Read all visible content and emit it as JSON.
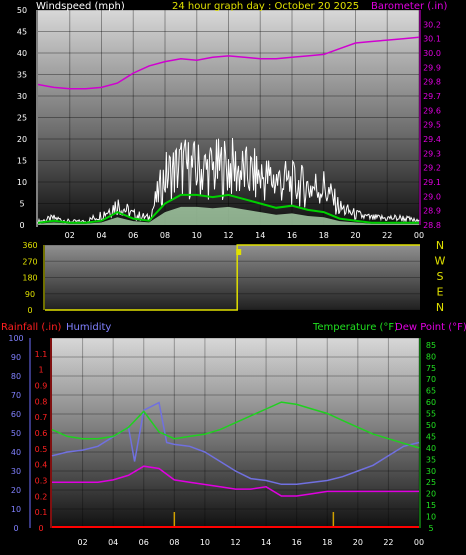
{
  "chart_data": [
    {
      "type": "line",
      "title": "24 hour graph day : October 20 2025",
      "ylabel_left": "Windspeed (mph)",
      "ylabel_right": "Barometer (.in)",
      "x_ticks": [
        "02",
        "04",
        "06",
        "08",
        "10",
        "12",
        "14",
        "16",
        "18",
        "20",
        "22",
        "00"
      ],
      "xlim": [
        0,
        24
      ],
      "ylim_left": [
        0,
        50
      ],
      "ylim_right": [
        28.8,
        30.3
      ],
      "left_ticks": [
        0,
        5,
        10,
        15,
        20,
        25,
        30,
        35,
        40,
        45,
        50
      ],
      "right_ticks": [
        28.8,
        28.9,
        29.0,
        29.1,
        29.2,
        29.3,
        29.4,
        29.5,
        29.6,
        29.7,
        29.8,
        29.9,
        30.0,
        30.1,
        30.2
      ],
      "series": [
        {
          "axis": "right",
          "color": "#d000d0",
          "x": [
            0,
            1,
            2,
            3,
            4,
            5,
            6,
            7,
            8,
            9,
            10,
            11,
            12,
            13,
            14,
            15,
            16,
            17,
            18,
            19,
            20,
            21,
            22,
            23,
            24
          ],
          "y": [
            29.78,
            29.76,
            29.75,
            29.75,
            29.76,
            29.79,
            29.86,
            29.91,
            29.94,
            29.96,
            29.95,
            29.97,
            29.98,
            29.97,
            29.96,
            29.96,
            29.97,
            29.98,
            29.99,
            30.03,
            30.07,
            30.08,
            30.09,
            30.1,
            30.11
          ]
        },
        {
          "axis": "left",
          "color": "#ffffff",
          "x": [
            0,
            1,
            2,
            3,
            4,
            5,
            6,
            7,
            8,
            9,
            10,
            11,
            12,
            13,
            14,
            15,
            16,
            17,
            18,
            19,
            20,
            21,
            22,
            23,
            24
          ],
          "y": [
            1,
            2,
            1,
            1,
            3,
            6,
            3,
            2,
            14,
            17,
            16,
            16,
            17,
            15,
            14,
            13,
            12,
            11,
            11,
            5,
            3,
            2,
            2,
            2,
            1
          ]
        },
        {
          "axis": "left",
          "color": "#00d000",
          "x": [
            0,
            1,
            2,
            3,
            4,
            5,
            6,
            7,
            8,
            9,
            10,
            11,
            12,
            13,
            14,
            15,
            16,
            17,
            18,
            19,
            20,
            21,
            22,
            23,
            24
          ],
          "y": [
            0.5,
            1,
            0.5,
            0.5,
            1,
            3,
            1.5,
            1,
            5,
            7,
            7,
            6.5,
            7,
            6,
            5,
            4,
            4.5,
            3.5,
            3,
            1.5,
            1,
            0.5,
            0.5,
            0.5,
            0.5
          ]
        }
      ]
    },
    {
      "type": "line",
      "title": "",
      "ylabel_right": "",
      "right_labels": [
        "N",
        "W",
        "S",
        "E",
        "N"
      ],
      "left_ticks": [
        0,
        90,
        180,
        270,
        360
      ],
      "ylim": [
        0,
        360
      ],
      "xlim": [
        0,
        24
      ],
      "series": [
        {
          "color": "#e0e000",
          "x": [
            0,
            4,
            4.8,
            12.3,
            12.3,
            24
          ],
          "y": [
            0,
            0,
            0,
            0,
            360,
            360
          ]
        }
      ]
    },
    {
      "type": "line",
      "title": "",
      "ylabel_left_1": "Rainfall (.in)",
      "ylabel_left_2": "Humidity",
      "ylabel_right_1": "Temperature (°F)",
      "ylabel_right_2": "Dew Point (°F)",
      "x_ticks": [
        "02",
        "04",
        "06",
        "08",
        "10",
        "12",
        "14",
        "16",
        "18",
        "20",
        "22",
        "00"
      ],
      "xlim": [
        0,
        24
      ],
      "humidity_ticks": [
        0,
        10,
        20,
        30,
        40,
        50,
        60,
        70,
        80,
        90,
        100
      ],
      "rain_ticks": [
        0,
        0.1,
        0.2,
        0.3,
        0.4,
        0.5,
        0.6,
        0.7,
        0.8,
        0.9,
        1,
        1.1
      ],
      "temp_ticks": [
        5,
        10,
        15,
        20,
        25,
        30,
        35,
        40,
        45,
        50,
        55,
        60,
        65,
        70,
        75,
        80,
        85
      ],
      "ylim_humidity": [
        0,
        100
      ],
      "ylim_rain": [
        0,
        1.2
      ],
      "ylim_temp": [
        5,
        88
      ],
      "series": [
        {
          "name": "Humidity",
          "axis": "humidity",
          "color": "#7070e0",
          "x": [
            0,
            1,
            2,
            3,
            4,
            5,
            5.4,
            6,
            7,
            7.5,
            8,
            9,
            10,
            11,
            12,
            13,
            14,
            15,
            16,
            17,
            18,
            19,
            20,
            21,
            22,
            23,
            24
          ],
          "y": [
            38,
            40,
            41,
            43,
            48,
            53,
            35,
            62,
            66,
            45,
            44,
            43,
            40,
            35,
            30,
            26,
            25,
            23,
            23,
            24,
            25,
            27,
            30,
            33,
            38,
            43,
            45
          ]
        },
        {
          "name": "Temperature",
          "axis": "temp",
          "color": "#20d020",
          "x": [
            0,
            1,
            2,
            3,
            4,
            5,
            6,
            7,
            8,
            9,
            10,
            11,
            12,
            13,
            14,
            15,
            16,
            17,
            18,
            19,
            20,
            21,
            22,
            23,
            24
          ],
          "y": [
            48,
            45,
            44,
            44,
            45,
            49,
            56,
            47,
            44,
            45,
            46,
            48,
            51,
            54,
            57,
            60,
            59,
            57,
            55,
            52,
            49,
            46,
            44,
            42,
            40
          ]
        },
        {
          "name": "Dew Point",
          "axis": "temp",
          "color": "#e000e0",
          "x": [
            0,
            1,
            2,
            3,
            4,
            5,
            6,
            7,
            8,
            9,
            10,
            11,
            12,
            13,
            14,
            15,
            16,
            17,
            18,
            19,
            20,
            21,
            22,
            23,
            24
          ],
          "y": [
            25,
            25,
            25,
            25,
            26,
            28,
            32,
            31,
            26,
            25,
            24,
            23,
            22,
            22,
            23,
            19,
            19,
            20,
            21,
            21,
            21,
            21,
            21,
            21,
            21
          ]
        },
        {
          "name": "Rainfall",
          "axis": "rain",
          "color": "#ff0000",
          "x": [
            0,
            24
          ],
          "y": [
            0,
            0
          ]
        }
      ],
      "rain_ticks_marks": [
        8.0,
        18.4
      ]
    }
  ]
}
